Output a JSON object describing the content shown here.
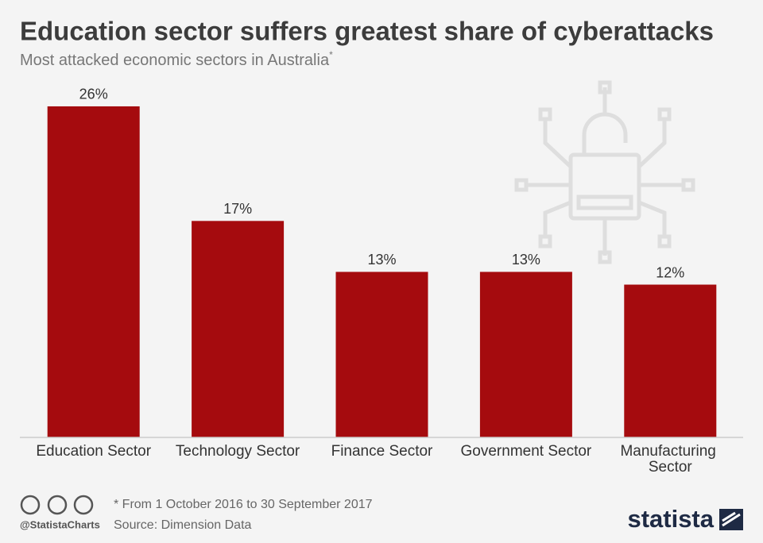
{
  "chart_data": {
    "type": "bar",
    "title": "Education sector suffers greatest share of cyberattacks",
    "subtitle": "Most attacked economic sectors in Australia",
    "subtitle_marker": "*",
    "categories": [
      "Education Sector",
      "Technology Sector",
      "Finance Sector",
      "Government Sector",
      "Manufacturing Sector"
    ],
    "values": [
      26,
      17,
      13,
      13,
      12
    ],
    "value_labels": [
      "26%",
      "17%",
      "13%",
      "13%",
      "12%"
    ],
    "color": "#a50b0e",
    "note": "* From 1 October 2016 to 30 September 2017",
    "source": "Source: Dimension Data",
    "credit": "@StatistaCharts",
    "brand": "statista"
  }
}
